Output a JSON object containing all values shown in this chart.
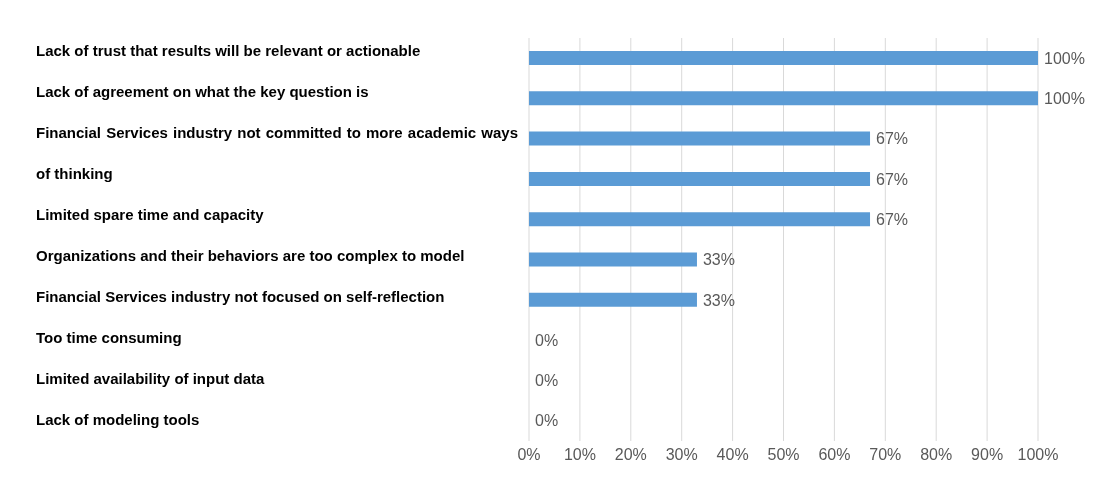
{
  "chart_data": {
    "type": "bar",
    "orientation": "horizontal",
    "categories": [
      null,
      null,
      null,
      null,
      null,
      null,
      null,
      null,
      null,
      null
    ],
    "values": [
      100,
      100,
      67,
      67,
      67,
      33,
      33,
      0,
      0,
      0
    ],
    "color": "#5b9bd5",
    "value_labels": [
      "100%",
      "100%",
      "67%",
      "67%",
      "67%",
      "33%",
      "33%",
      "0%",
      "0%",
      "0%"
    ],
    "xlim": [
      0,
      100
    ],
    "xticks": [
      {
        "value": 0,
        "label": "0%"
      },
      {
        "value": 10,
        "label": "10%"
      },
      {
        "value": 20,
        "label": "20%"
      },
      {
        "value": 30,
        "label": "30%"
      },
      {
        "value": 40,
        "label": "40%"
      },
      {
        "value": 50,
        "label": "50%"
      },
      {
        "value": 60,
        "label": "60%"
      },
      {
        "value": 70,
        "label": "70%"
      },
      {
        "value": 80,
        "label": "80%"
      },
      {
        "value": 90,
        "label": "90%"
      },
      {
        "value": 100,
        "label": "100%"
      }
    ],
    "grid": "x",
    "tick_labels": "x",
    "annotations": [
      "Lack of trust that results will be relevant or actionable",
      "Lack of agreement on what the key question is",
      "Financial Services industry not committed to more academic ways of thinking",
      "Limited spare time and capacity",
      "Organizations and their behaviors are too complex to model",
      "Financial Services industry not focused on self-reflection",
      "Too time consuming",
      "Limited availability of input data",
      "Lack of modeling tools"
    ]
  }
}
